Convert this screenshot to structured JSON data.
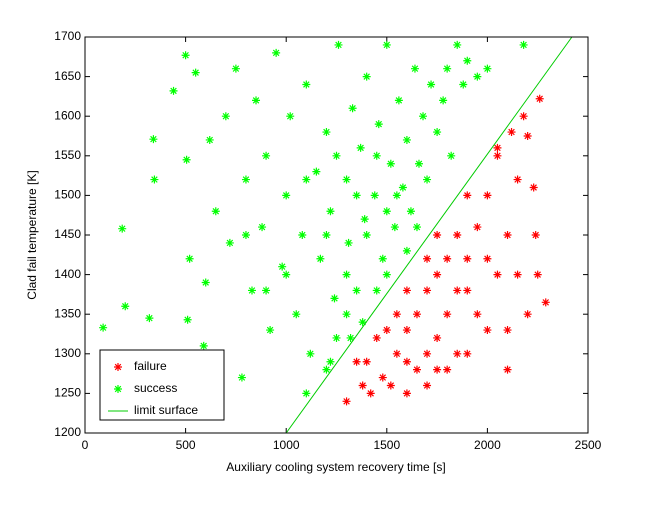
{
  "chart_data": {
    "type": "scatter",
    "xlabel": "Auxiliary cooling system recovery time [s]",
    "ylabel": "Clad fail temperature [K]",
    "xlim": [
      0,
      2500
    ],
    "ylim": [
      1200,
      1700
    ],
    "xticks": [
      0,
      500,
      1000,
      1500,
      2000,
      2500
    ],
    "yticks": [
      1200,
      1250,
      1300,
      1350,
      1400,
      1450,
      1500,
      1550,
      1600,
      1650,
      1700
    ],
    "grid": false,
    "legend": "lower left",
    "series": [
      {
        "name": "failure",
        "color": "#ff0000",
        "marker": "asterisk",
        "x": [
          2260,
          2290,
          2250,
          2240,
          2230,
          2200,
          2100,
          2050,
          2000,
          1950,
          1900,
          1850,
          1800,
          1750,
          1700,
          1650,
          1600,
          1550,
          1500,
          1450,
          1400,
          1380,
          1420,
          1480,
          1520,
          1600,
          1700,
          1800,
          1900,
          2000,
          2050,
          2100,
          2150,
          2050,
          2120,
          2180,
          1850,
          1800,
          1750,
          1700,
          1650,
          1600,
          1900,
          1950,
          2000,
          1850,
          1750,
          1700,
          1900,
          1750,
          2150,
          2200,
          2100,
          1300,
          1350,
          1550,
          1600
        ],
        "y": [
          1622,
          1365,
          1400,
          1450,
          1510,
          1575,
          1280,
          1560,
          1500,
          1460,
          1420,
          1380,
          1350,
          1320,
          1300,
          1280,
          1290,
          1300,
          1330,
          1320,
          1290,
          1260,
          1250,
          1270,
          1260,
          1250,
          1260,
          1280,
          1300,
          1330,
          1400,
          1450,
          1520,
          1550,
          1580,
          1600,
          1450,
          1420,
          1400,
          1380,
          1350,
          1330,
          1380,
          1350,
          1420,
          1300,
          1280,
          1420,
          1500,
          1450,
          1400,
          1350,
          1330,
          1240,
          1290,
          1350,
          1380
        ]
      },
      {
        "name": "success",
        "color": "#00ff00",
        "marker": "asterisk",
        "x": [
          90,
          185,
          200,
          320,
          340,
          345,
          440,
          500,
          505,
          520,
          510,
          550,
          590,
          600,
          620,
          650,
          700,
          720,
          750,
          780,
          800,
          830,
          850,
          880,
          900,
          920,
          950,
          980,
          1000,
          1020,
          1050,
          1080,
          1100,
          1120,
          1150,
          1170,
          1200,
          1220,
          1240,
          1260,
          1220,
          1300,
          1310,
          1330,
          1350,
          1370,
          1390,
          1400,
          1380,
          1440,
          1460,
          1480,
          1500,
          1520,
          1540,
          1560,
          1580,
          1600,
          1620,
          1640,
          1660,
          1680,
          1700,
          1720,
          1750,
          1780,
          1800,
          1820,
          1850,
          1880,
          1900,
          1950,
          2000,
          2180,
          1100,
          1250,
          1200,
          1320,
          1450,
          1500,
          1600,
          1250,
          1300,
          1350,
          1400,
          1450,
          1200,
          1100,
          1000,
          900,
          800,
          1300,
          1500,
          1550,
          1650
        ],
        "y": [
          1333,
          1458,
          1360,
          1345,
          1571,
          1520,
          1632,
          1677,
          1545,
          1420,
          1343,
          1655,
          1310,
          1390,
          1570,
          1480,
          1600,
          1440,
          1660,
          1270,
          1520,
          1380,
          1620,
          1460,
          1550,
          1330,
          1680,
          1410,
          1500,
          1600,
          1350,
          1450,
          1640,
          1300,
          1530,
          1420,
          1580,
          1480,
          1370,
          1690,
          1290,
          1520,
          1440,
          1610,
          1380,
          1560,
          1470,
          1650,
          1340,
          1500,
          1590,
          1420,
          1690,
          1540,
          1460,
          1620,
          1510,
          1570,
          1480,
          1660,
          1540,
          1600,
          1520,
          1640,
          1580,
          1620,
          1660,
          1550,
          1690,
          1640,
          1670,
          1650,
          1660,
          1690,
          1250,
          1320,
          1280,
          1320,
          1380,
          1400,
          1430,
          1550,
          1400,
          1500,
          1450,
          1550,
          1450,
          1520,
          1400,
          1380,
          1450,
          1350,
          1480,
          1500,
          1460
        ]
      },
      {
        "name": "limit surface",
        "color": "#00cc00",
        "marker": "line",
        "x": [
          1000,
          2420
        ],
        "y": [
          1200,
          1700
        ]
      }
    ]
  }
}
